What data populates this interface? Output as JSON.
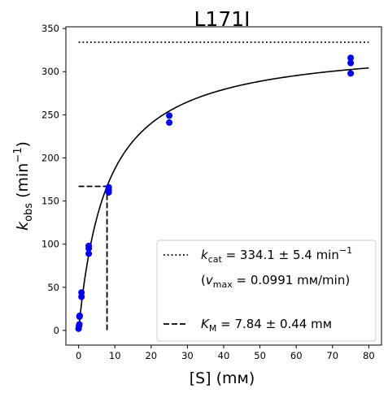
{
  "chart_data": {
    "type": "scatter",
    "title": "L171I",
    "xlabel": {
      "text": "[S] (",
      "unit": "mм",
      "close": ")"
    },
    "ylabel": {
      "k": "k",
      "sub": "obs",
      "paren": " (min",
      "sup": "−1",
      "close": ")"
    },
    "xlim": [
      -3.5,
      83.5
    ],
    "ylim": [
      -17,
      352
    ],
    "xticks": [
      0,
      10,
      20,
      30,
      40,
      50,
      60,
      70,
      80
    ],
    "yticks": [
      0,
      50,
      100,
      150,
      200,
      250,
      300,
      350
    ],
    "grid": false,
    "legend_position": "lower-right",
    "points": [
      {
        "x": 0,
        "y": 2
      },
      {
        "x": 0.1,
        "y": 5
      },
      {
        "x": 0.2,
        "y": 7
      },
      {
        "x": 0.25,
        "y": 16
      },
      {
        "x": 0.3,
        "y": 17
      },
      {
        "x": 0.8,
        "y": 39
      },
      {
        "x": 0.8,
        "y": 44
      },
      {
        "x": 2.8,
        "y": 89
      },
      {
        "x": 2.8,
        "y": 95
      },
      {
        "x": 2.8,
        "y": 98
      },
      {
        "x": 8.3,
        "y": 160
      },
      {
        "x": 8.3,
        "y": 163
      },
      {
        "x": 8.3,
        "y": 166
      },
      {
        "x": 25,
        "y": 241
      },
      {
        "x": 25,
        "y": 249
      },
      {
        "x": 75,
        "y": 298
      },
      {
        "x": 75,
        "y": 310
      },
      {
        "x": 75,
        "y": 316
      }
    ],
    "fit": {
      "model": "Michaelis-Menten",
      "kcat": 334.1,
      "Km": 7.84,
      "x_range": [
        0,
        80
      ]
    },
    "kcat_line": {
      "y": 334.1,
      "x_range": [
        0,
        80
      ]
    },
    "km_marker": {
      "x": 7.84,
      "half_kcat": 167.05
    },
    "colors": {
      "points": "#0000ff",
      "lines": "#000000"
    },
    "legend": [
      {
        "style": "dotted",
        "symbol": "k",
        "sub": "cat",
        "text": " = 334.1 ± 5.4 min",
        "sup": "−1"
      },
      {
        "style": "none",
        "line1_pre": "(",
        "symbol": "v",
        "sub": "max",
        "text": " = 0.0991 mм/min)"
      },
      {
        "style": "dashed",
        "symbol": "K",
        "sub": "M",
        "text": " = 7.84 ± 0.44 mм"
      }
    ]
  }
}
